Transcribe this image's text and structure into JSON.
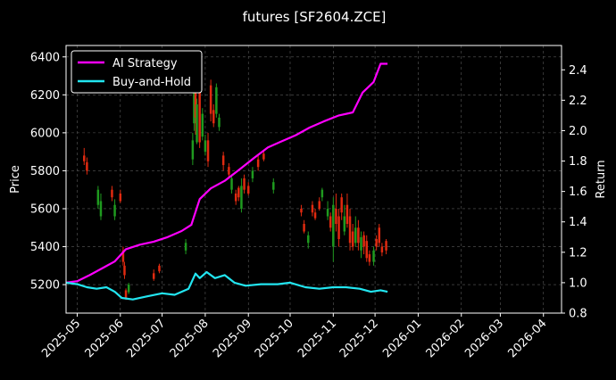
{
  "chart_data": {
    "type": "line",
    "title": "futures [SF2604.ZCE]",
    "ylabel": "Price",
    "ylabel_right": "Return",
    "xlim": [
      "2025-04-23",
      "2026-04-14"
    ],
    "ylim": [
      5050,
      6460
    ],
    "ylim_right": [
      0.8,
      2.56
    ],
    "grid": true,
    "legend_placement": "top-left",
    "x_ticks": [
      "2025-05",
      "2025-06",
      "2025-07",
      "2025-08",
      "2025-09",
      "2025-10",
      "2025-11",
      "2025-12",
      "2026-01",
      "2026-02",
      "2026-03",
      "2026-04"
    ],
    "y_ticks": [
      5200,
      5400,
      5600,
      5800,
      6000,
      6200,
      6400
    ],
    "y_ticks_right": [
      0.8,
      1.0,
      1.2,
      1.4,
      1.6,
      1.8,
      2.0,
      2.2,
      2.4
    ],
    "series": [
      {
        "name": "AI Strategy",
        "axis": "right",
        "color": "#ff00ff",
        "points": [
          [
            "2025-04-23",
            1.0
          ],
          [
            "2025-05-01",
            1.01
          ],
          [
            "2025-05-10",
            1.05
          ],
          [
            "2025-05-20",
            1.1
          ],
          [
            "2025-05-28",
            1.14
          ],
          [
            "2025-06-05",
            1.22
          ],
          [
            "2025-06-15",
            1.25
          ],
          [
            "2025-06-25",
            1.27
          ],
          [
            "2025-07-05",
            1.3
          ],
          [
            "2025-07-15",
            1.34
          ],
          [
            "2025-07-22",
            1.38
          ],
          [
            "2025-07-28",
            1.55
          ],
          [
            "2025-08-05",
            1.62
          ],
          [
            "2025-08-15",
            1.67
          ],
          [
            "2025-08-25",
            1.74
          ],
          [
            "2025-09-05",
            1.82
          ],
          [
            "2025-09-15",
            1.89
          ],
          [
            "2025-09-25",
            1.93
          ],
          [
            "2025-10-05",
            1.97
          ],
          [
            "2025-10-15",
            2.02
          ],
          [
            "2025-10-25",
            2.06
          ],
          [
            "2025-11-05",
            2.1
          ],
          [
            "2025-11-15",
            2.12
          ],
          [
            "2025-11-22",
            2.25
          ],
          [
            "2025-11-30",
            2.32
          ],
          [
            "2025-12-05",
            2.44
          ],
          [
            "2025-12-10",
            2.44
          ]
        ]
      },
      {
        "name": "Buy-and-Hold",
        "axis": "right",
        "color": "#22e5f0",
        "points": [
          [
            "2025-04-23",
            1.0
          ],
          [
            "2025-05-01",
            0.99
          ],
          [
            "2025-05-08",
            0.97
          ],
          [
            "2025-05-15",
            0.96
          ],
          [
            "2025-05-22",
            0.97
          ],
          [
            "2025-05-28",
            0.94
          ],
          [
            "2025-06-02",
            0.9
          ],
          [
            "2025-06-10",
            0.89
          ],
          [
            "2025-06-20",
            0.91
          ],
          [
            "2025-07-01",
            0.93
          ],
          [
            "2025-07-10",
            0.92
          ],
          [
            "2025-07-20",
            0.96
          ],
          [
            "2025-07-25",
            1.06
          ],
          [
            "2025-07-28",
            1.03
          ],
          [
            "2025-08-02",
            1.07
          ],
          [
            "2025-08-08",
            1.03
          ],
          [
            "2025-08-15",
            1.05
          ],
          [
            "2025-08-22",
            1.0
          ],
          [
            "2025-08-30",
            0.98
          ],
          [
            "2025-09-10",
            0.99
          ],
          [
            "2025-09-22",
            0.99
          ],
          [
            "2025-10-01",
            1.0
          ],
          [
            "2025-10-12",
            0.97
          ],
          [
            "2025-10-22",
            0.96
          ],
          [
            "2025-11-01",
            0.97
          ],
          [
            "2025-11-10",
            0.97
          ],
          [
            "2025-11-20",
            0.96
          ],
          [
            "2025-11-28",
            0.94
          ],
          [
            "2025-12-05",
            0.95
          ],
          [
            "2025-12-10",
            0.94
          ]
        ]
      }
    ],
    "candles": [
      [
        "2025-05-06",
        5880,
        5850,
        5920,
        5830
      ],
      [
        "2025-05-08",
        5845,
        5800,
        5870,
        5780
      ],
      [
        "2025-05-16",
        5620,
        5700,
        5720,
        5600
      ],
      [
        "2025-05-18",
        5560,
        5640,
        5680,
        5540
      ],
      [
        "2025-05-26",
        5700,
        5660,
        5720,
        5640
      ],
      [
        "2025-05-28",
        5560,
        5620,
        5650,
        5540
      ],
      [
        "2025-06-01",
        5680,
        5640,
        5700,
        5630
      ],
      [
        "2025-06-03",
        5380,
        5320,
        5400,
        5300
      ],
      [
        "2025-06-04",
        5300,
        5250,
        5320,
        5230
      ],
      [
        "2025-06-05",
        5170,
        5130,
        5180,
        5120
      ],
      [
        "2025-06-07",
        5160,
        5200,
        5210,
        5150
      ],
      [
        "2025-06-25",
        5260,
        5230,
        5280,
        5220
      ],
      [
        "2025-06-29",
        5300,
        5270,
        5310,
        5260
      ],
      [
        "2025-07-18",
        5380,
        5420,
        5440,
        5360
      ],
      [
        "2025-07-23",
        5860,
        5960,
        6000,
        5830
      ],
      [
        "2025-07-24",
        6050,
        6250,
        6330,
        6010
      ],
      [
        "2025-07-25",
        6400,
        6080,
        6420,
        5990
      ],
      [
        "2025-07-26",
        5950,
        6150,
        6180,
        5940
      ],
      [
        "2025-07-28",
        6300,
        5950,
        6380,
        5920
      ],
      [
        "2025-07-30",
        5980,
        6100,
        6130,
        5960
      ],
      [
        "2025-08-01",
        5900,
        5960,
        5990,
        5880
      ],
      [
        "2025-08-03",
        5960,
        5850,
        6000,
        5820
      ],
      [
        "2025-08-05",
        6250,
        6100,
        6280,
        6060
      ],
      [
        "2025-08-07",
        6120,
        6050,
        6150,
        6030
      ],
      [
        "2025-08-09",
        6100,
        6240,
        6260,
        6080
      ],
      [
        "2025-08-11",
        6030,
        6080,
        6100,
        6010
      ],
      [
        "2025-08-14",
        5880,
        5830,
        5900,
        5800
      ],
      [
        "2025-08-18",
        5820,
        5780,
        5840,
        5760
      ],
      [
        "2025-08-20",
        5700,
        5760,
        5780,
        5680
      ],
      [
        "2025-08-23",
        5680,
        5640,
        5700,
        5620
      ],
      [
        "2025-08-25",
        5710,
        5660,
        5720,
        5640
      ],
      [
        "2025-08-27",
        5600,
        5720,
        5760,
        5580
      ],
      [
        "2025-08-29",
        5760,
        5700,
        5780,
        5680
      ],
      [
        "2025-09-01",
        5720,
        5680,
        5740,
        5670
      ],
      [
        "2025-09-04",
        5760,
        5800,
        5820,
        5740
      ],
      [
        "2025-09-08",
        5860,
        5820,
        5880,
        5800
      ],
      [
        "2025-09-12",
        5890,
        5860,
        5910,
        5850
      ],
      [
        "2025-09-19",
        5700,
        5740,
        5760,
        5680
      ],
      [
        "2025-10-09",
        5600,
        5580,
        5620,
        5560
      ],
      [
        "2025-10-11",
        5520,
        5480,
        5540,
        5470
      ],
      [
        "2025-10-14",
        5420,
        5460,
        5480,
        5390
      ],
      [
        "2025-10-17",
        5620,
        5580,
        5640,
        5560
      ],
      [
        "2025-10-19",
        5580,
        5550,
        5600,
        5540
      ],
      [
        "2025-10-22",
        5640,
        5600,
        5660,
        5590
      ],
      [
        "2025-10-24",
        5660,
        5700,
        5710,
        5640
      ],
      [
        "2025-10-28",
        5560,
        5600,
        5640,
        5540
      ],
      [
        "2025-10-30",
        5560,
        5500,
        5580,
        5480
      ],
      [
        "2025-11-01",
        5400,
        5620,
        5660,
        5320
      ],
      [
        "2025-11-03",
        5600,
        5520,
        5680,
        5480
      ],
      [
        "2025-11-05",
        5560,
        5440,
        5600,
        5400
      ],
      [
        "2025-11-07",
        5660,
        5580,
        5680,
        5540
      ],
      [
        "2025-11-09",
        5480,
        5560,
        5620,
        5460
      ],
      [
        "2025-11-11",
        5620,
        5520,
        5680,
        5500
      ],
      [
        "2025-11-13",
        5560,
        5420,
        5600,
        5380
      ],
      [
        "2025-11-15",
        5480,
        5400,
        5520,
        5380
      ],
      [
        "2025-11-17",
        5420,
        5500,
        5560,
        5400
      ],
      [
        "2025-11-19",
        5500,
        5420,
        5540,
        5380
      ],
      [
        "2025-11-21",
        5380,
        5450,
        5480,
        5340
      ],
      [
        "2025-11-23",
        5460,
        5400,
        5480,
        5360
      ],
      [
        "2025-11-25",
        5430,
        5340,
        5460,
        5320
      ],
      [
        "2025-11-27",
        5360,
        5320,
        5380,
        5300
      ],
      [
        "2025-11-30",
        5320,
        5380,
        5400,
        5300
      ],
      [
        "2025-12-02",
        5440,
        5400,
        5460,
        5380
      ],
      [
        "2025-12-04",
        5500,
        5420,
        5520,
        5400
      ],
      [
        "2025-12-06",
        5400,
        5370,
        5420,
        5350
      ],
      [
        "2025-12-09",
        5430,
        5380,
        5440,
        5360
      ]
    ]
  }
}
